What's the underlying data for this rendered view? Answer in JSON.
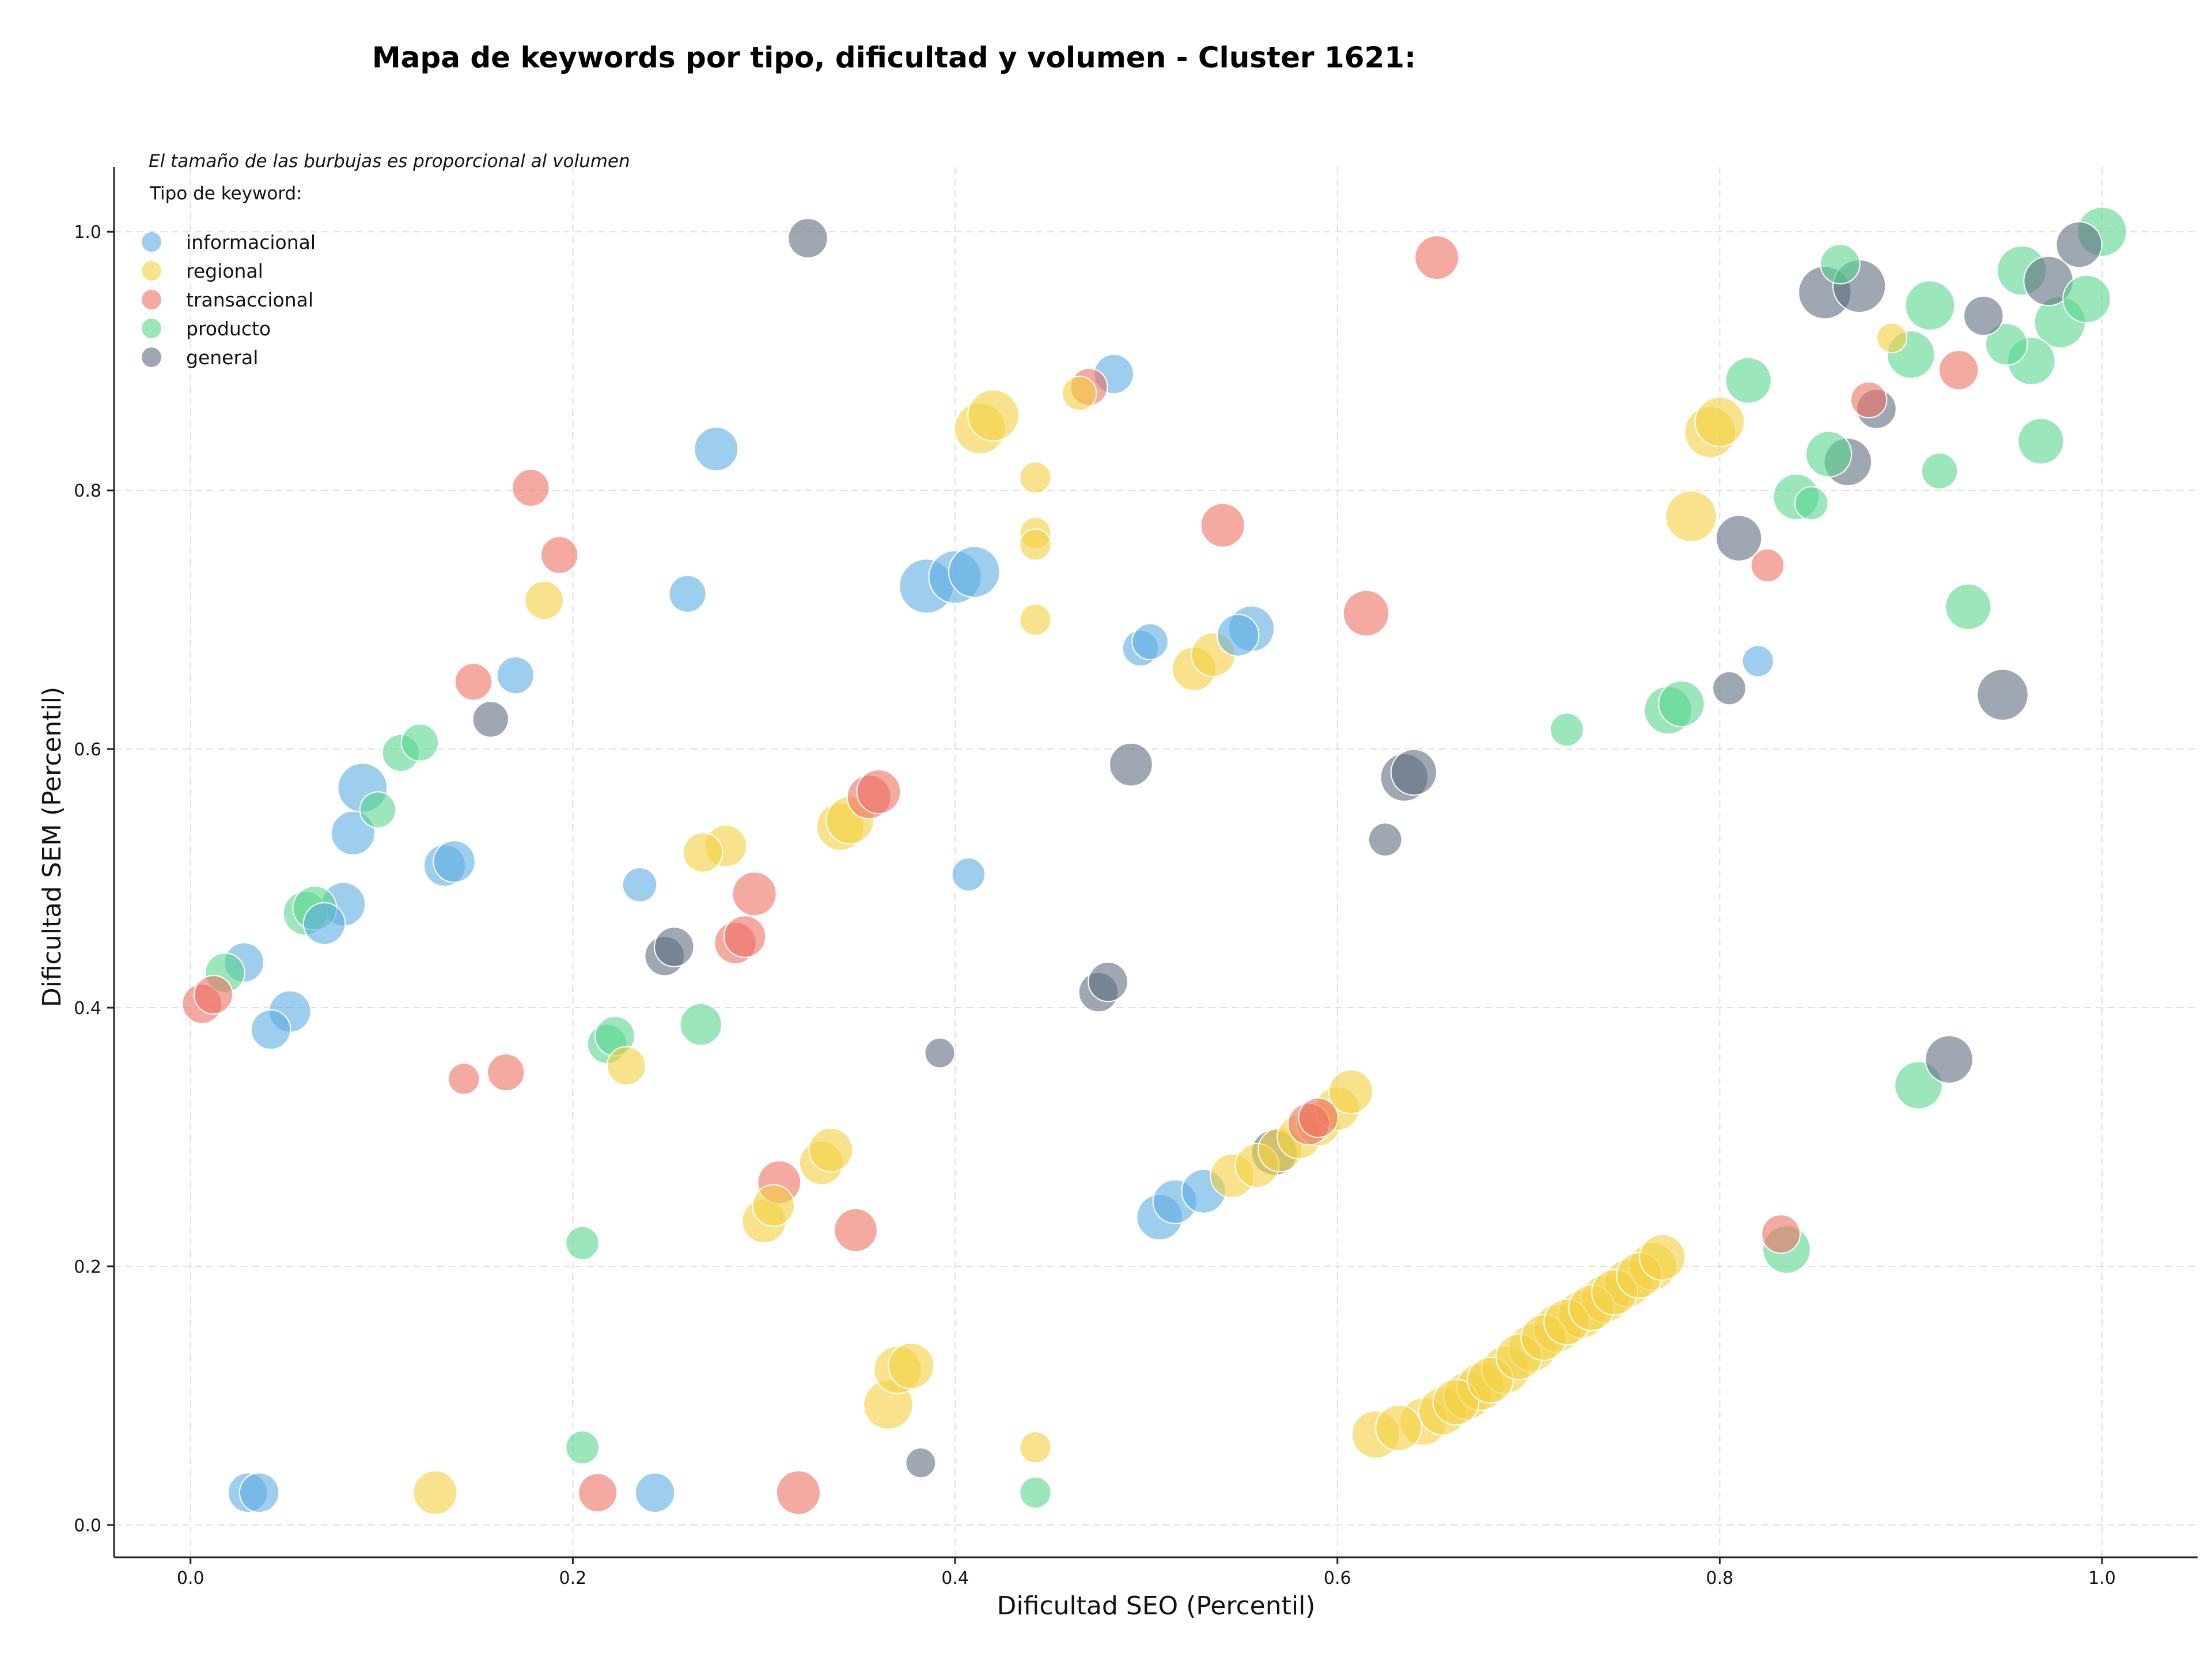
{
  "chart_data": {
    "type": "scatter",
    "title": "Mapa de keywords por tipo, dificultad y volumen - Cluster 1621:",
    "xlabel": "Dificultad SEO (Percentil)",
    "ylabel": "Dificultad SEM (Percentil)",
    "note": "El tamaño de las burbujas es proporcional al volumen",
    "legend_title": "Tipo de keyword:",
    "legend_position": "top-left",
    "xlim": [
      -0.04,
      1.05
    ],
    "ylim": [
      -0.025,
      1.05
    ],
    "xticks": [
      "0.0",
      "0.2",
      "0.4",
      "0.6",
      "0.8",
      "1.0"
    ],
    "yticks": [
      "0.0",
      "0.2",
      "0.4",
      "0.6",
      "0.8",
      "1.0"
    ],
    "grid": true,
    "series": [
      {
        "name": "informacional",
        "color": "#5DADE2",
        "points": [
          [
            0.03,
            0.025,
            3
          ],
          [
            0.036,
            0.025,
            3
          ],
          [
            0.042,
            0.383,
            3
          ],
          [
            0.052,
            0.397,
            3.5
          ],
          [
            0.028,
            0.435,
            3
          ],
          [
            0.07,
            0.465,
            3.5
          ],
          [
            0.08,
            0.48,
            4
          ],
          [
            0.085,
            0.535,
            4
          ],
          [
            0.09,
            0.57,
            5.5
          ],
          [
            0.17,
            0.657,
            2.5
          ],
          [
            0.133,
            0.51,
            3.5
          ],
          [
            0.138,
            0.513,
            3.5
          ],
          [
            0.235,
            0.495,
            2
          ],
          [
            0.26,
            0.72,
            2.5
          ],
          [
            0.275,
            0.832,
            4
          ],
          [
            0.243,
            0.025,
            3
          ],
          [
            0.385,
            0.726,
            7
          ],
          [
            0.4,
            0.733,
            6.5
          ],
          [
            0.41,
            0.737,
            6
          ],
          [
            0.407,
            0.503,
            1.8
          ],
          [
            0.483,
            0.89,
            3
          ],
          [
            0.497,
            0.678,
            2.3
          ],
          [
            0.502,
            0.683,
            2.3
          ],
          [
            0.507,
            0.238,
            4.5
          ],
          [
            0.515,
            0.25,
            4
          ],
          [
            0.53,
            0.258,
            4
          ],
          [
            0.555,
            0.693,
            4.5
          ],
          [
            0.548,
            0.688,
            3.5
          ],
          [
            0.82,
            0.668,
            1.5
          ]
        ]
      },
      {
        "name": "regional",
        "color": "#F4D03F",
        "points": [
          [
            0.128,
            0.025,
            4
          ],
          [
            0.185,
            0.715,
            2.8
          ],
          [
            0.228,
            0.355,
            2.8
          ],
          [
            0.268,
            0.52,
            3
          ],
          [
            0.28,
            0.525,
            3.5
          ],
          [
            0.3,
            0.235,
            4
          ],
          [
            0.305,
            0.247,
            3.5
          ],
          [
            0.33,
            0.28,
            4
          ],
          [
            0.335,
            0.29,
            4
          ],
          [
            0.34,
            0.54,
            5
          ],
          [
            0.345,
            0.545,
            5
          ],
          [
            0.365,
            0.093,
            5.5
          ],
          [
            0.37,
            0.12,
            5
          ],
          [
            0.377,
            0.123,
            4.5
          ],
          [
            0.413,
            0.848,
            6
          ],
          [
            0.42,
            0.858,
            6
          ],
          [
            0.442,
            0.81,
            1.5
          ],
          [
            0.442,
            0.767,
            1.5
          ],
          [
            0.442,
            0.758,
            1.5
          ],
          [
            0.442,
            0.7,
            1.5
          ],
          [
            0.442,
            0.06,
            1.5
          ],
          [
            0.465,
            0.875,
            2
          ],
          [
            0.525,
            0.662,
            4
          ],
          [
            0.535,
            0.673,
            4
          ],
          [
            0.545,
            0.27,
            4
          ],
          [
            0.558,
            0.278,
            4
          ],
          [
            0.57,
            0.29,
            4
          ],
          [
            0.58,
            0.3,
            4
          ],
          [
            0.59,
            0.31,
            4
          ],
          [
            0.6,
            0.322,
            4
          ],
          [
            0.607,
            0.335,
            4
          ],
          [
            0.62,
            0.07,
            5
          ],
          [
            0.632,
            0.075,
            4.5
          ],
          [
            0.645,
            0.08,
            5
          ],
          [
            0.655,
            0.088,
            5
          ],
          [
            0.662,
            0.095,
            4.5
          ],
          [
            0.668,
            0.1,
            5
          ],
          [
            0.675,
            0.107,
            5
          ],
          [
            0.68,
            0.112,
            4.5
          ],
          [
            0.688,
            0.12,
            5
          ],
          [
            0.695,
            0.13,
            4.5
          ],
          [
            0.702,
            0.137,
            5
          ],
          [
            0.708,
            0.145,
            4.5
          ],
          [
            0.715,
            0.152,
            5
          ],
          [
            0.72,
            0.157,
            4.5
          ],
          [
            0.728,
            0.163,
            5
          ],
          [
            0.733,
            0.168,
            4.5
          ],
          [
            0.74,
            0.175,
            5
          ],
          [
            0.745,
            0.18,
            4.5
          ],
          [
            0.752,
            0.187,
            5
          ],
          [
            0.758,
            0.193,
            4.5
          ],
          [
            0.765,
            0.2,
            5
          ],
          [
            0.77,
            0.207,
            4.5
          ],
          [
            0.785,
            0.78,
            6
          ],
          [
            0.795,
            0.845,
            6
          ],
          [
            0.8,
            0.853,
            5.5
          ],
          [
            0.89,
            0.918,
            1.3
          ]
        ]
      },
      {
        "name": "transaccional",
        "color": "#EC7063",
        "points": [
          [
            0.006,
            0.403,
            3
          ],
          [
            0.012,
            0.41,
            2.8
          ],
          [
            0.143,
            0.345,
            1.5
          ],
          [
            0.148,
            0.652,
            2.5
          ],
          [
            0.165,
            0.35,
            2.5
          ],
          [
            0.178,
            0.802,
            2.5
          ],
          [
            0.193,
            0.75,
            2.5
          ],
          [
            0.213,
            0.025,
            2.8
          ],
          [
            0.285,
            0.45,
            3.5
          ],
          [
            0.29,
            0.455,
            3.5
          ],
          [
            0.295,
            0.488,
            4
          ],
          [
            0.308,
            0.265,
            3.8
          ],
          [
            0.318,
            0.025,
            4
          ],
          [
            0.348,
            0.228,
            3.8
          ],
          [
            0.355,
            0.563,
            4
          ],
          [
            0.36,
            0.567,
            4
          ],
          [
            0.47,
            0.88,
            2.5
          ],
          [
            0.54,
            0.773,
            4
          ],
          [
            0.585,
            0.31,
            3.5
          ],
          [
            0.59,
            0.315,
            3
          ],
          [
            0.615,
            0.705,
            4.5
          ],
          [
            0.652,
            0.98,
            4
          ],
          [
            0.825,
            0.742,
            1.8
          ],
          [
            0.832,
            0.225,
            2.8
          ],
          [
            0.878,
            0.87,
            2.3
          ],
          [
            0.925,
            0.893,
            3
          ]
        ]
      },
      {
        "name": "producto",
        "color": "#58D68D",
        "points": [
          [
            0.018,
            0.427,
            3
          ],
          [
            0.06,
            0.473,
            4
          ],
          [
            0.065,
            0.477,
            4
          ],
          [
            0.098,
            0.553,
            2.3
          ],
          [
            0.11,
            0.597,
            2.5
          ],
          [
            0.12,
            0.605,
            2.5
          ],
          [
            0.205,
            0.218,
            1.8
          ],
          [
            0.205,
            0.06,
            1.8
          ],
          [
            0.218,
            0.372,
            3
          ],
          [
            0.222,
            0.378,
            3
          ],
          [
            0.267,
            0.387,
            3.5
          ],
          [
            0.442,
            0.025,
            1.5
          ],
          [
            0.72,
            0.615,
            1.8
          ],
          [
            0.773,
            0.63,
            5
          ],
          [
            0.78,
            0.635,
            4.5
          ],
          [
            0.815,
            0.885,
            4.5
          ],
          [
            0.835,
            0.213,
            5
          ],
          [
            0.84,
            0.795,
            4.5
          ],
          [
            0.848,
            0.79,
            1.8
          ],
          [
            0.857,
            0.828,
            4.5
          ],
          [
            0.863,
            0.975,
            3
          ],
          [
            0.9,
            0.905,
            5
          ],
          [
            0.91,
            0.943,
            5.5
          ],
          [
            0.904,
            0.34,
            5
          ],
          [
            0.915,
            0.815,
            2.3
          ],
          [
            0.93,
            0.71,
            4.5
          ],
          [
            0.95,
            0.913,
            3.5
          ],
          [
            0.958,
            0.97,
            5.5
          ],
          [
            0.963,
            0.9,
            5
          ],
          [
            0.968,
            0.838,
            4.5
          ],
          [
            0.978,
            0.93,
            6
          ],
          [
            0.992,
            0.948,
            5
          ],
          [
            1.0,
            1.0,
            5.5
          ]
        ]
      },
      {
        "name": "general",
        "color": "#5D6D7E",
        "points": [
          [
            0.157,
            0.623,
            2.3
          ],
          [
            0.248,
            0.44,
            3
          ],
          [
            0.253,
            0.447,
            3
          ],
          [
            0.323,
            0.995,
            3
          ],
          [
            0.382,
            0.048,
            1.3
          ],
          [
            0.392,
            0.365,
            1.3
          ],
          [
            0.475,
            0.412,
            3
          ],
          [
            0.48,
            0.42,
            3
          ],
          [
            0.492,
            0.588,
            3.8
          ],
          [
            0.567,
            0.288,
            4.5
          ],
          [
            0.625,
            0.53,
            1.8
          ],
          [
            0.635,
            0.578,
            5
          ],
          [
            0.64,
            0.582,
            4.5
          ],
          [
            0.805,
            0.647,
            1.8
          ],
          [
            0.81,
            0.763,
            4.5
          ],
          [
            0.855,
            0.953,
            6.5
          ],
          [
            0.867,
            0.822,
            5
          ],
          [
            0.873,
            0.958,
            6.5
          ],
          [
            0.882,
            0.863,
            3
          ],
          [
            0.92,
            0.36,
            5
          ],
          [
            0.938,
            0.935,
            3
          ],
          [
            0.948,
            0.642,
            6
          ],
          [
            0.972,
            0.962,
            5.5
          ],
          [
            0.988,
            0.99,
            4.5
          ]
        ]
      }
    ]
  }
}
